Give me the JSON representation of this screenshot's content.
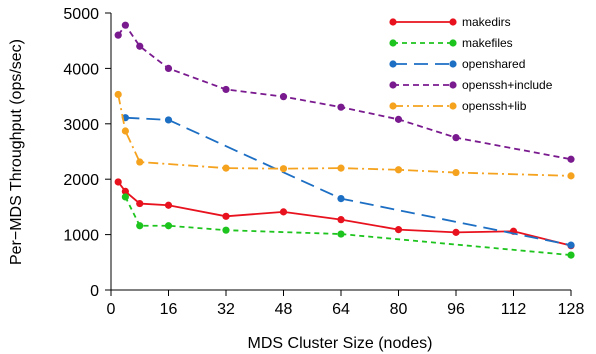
{
  "chart_data": {
    "type": "line",
    "title": "",
    "xlabel": "MDS Cluster Size (nodes)",
    "ylabel": "Per−MDS Throughput (ops/sec)",
    "xlim": [
      0,
      128
    ],
    "ylim": [
      0,
      5000
    ],
    "x_ticks": [
      0,
      16,
      32,
      48,
      64,
      80,
      96,
      112,
      128
    ],
    "y_ticks": [
      0,
      1000,
      2000,
      3000,
      4000,
      5000
    ],
    "grid": false,
    "legend_position": "top-right",
    "series": [
      {
        "name": "makedirs",
        "color": "#e8121e",
        "dash": "solid",
        "points": [
          [
            2,
            1950
          ],
          [
            4,
            1780
          ],
          [
            8,
            1560
          ],
          [
            16,
            1530
          ],
          [
            32,
            1330
          ],
          [
            48,
            1410
          ],
          [
            64,
            1270
          ],
          [
            80,
            1090
          ],
          [
            96,
            1040
          ],
          [
            112,
            1060
          ],
          [
            128,
            800
          ]
        ]
      },
      {
        "name": "makefiles",
        "color": "#1ec41e",
        "dash": "dashed",
        "points": [
          [
            4,
            1680
          ],
          [
            8,
            1160
          ],
          [
            16,
            1160
          ],
          [
            32,
            1080
          ],
          [
            64,
            1010
          ],
          [
            128,
            630
          ]
        ]
      },
      {
        "name": "openshared",
        "color": "#1d6fc4",
        "dash": "longdash",
        "points": [
          [
            4,
            3110
          ],
          [
            16,
            3070
          ],
          [
            64,
            1650
          ],
          [
            128,
            810
          ]
        ]
      },
      {
        "name": "openssh+include",
        "color": "#7a1a8f",
        "dash": "shortdash",
        "points": [
          [
            2,
            4600
          ],
          [
            4,
            4780
          ],
          [
            8,
            4400
          ],
          [
            16,
            4000
          ],
          [
            32,
            3620
          ],
          [
            48,
            3490
          ],
          [
            64,
            3300
          ],
          [
            80,
            3080
          ],
          [
            96,
            2750
          ],
          [
            128,
            2360
          ]
        ]
      },
      {
        "name": "openssh+lib",
        "color": "#f5a31f",
        "dash": "dashdot",
        "points": [
          [
            2,
            3530
          ],
          [
            4,
            2870
          ],
          [
            8,
            2310
          ],
          [
            32,
            2200
          ],
          [
            48,
            2190
          ],
          [
            64,
            2200
          ],
          [
            80,
            2170
          ],
          [
            96,
            2120
          ],
          [
            128,
            2060
          ]
        ]
      }
    ]
  }
}
